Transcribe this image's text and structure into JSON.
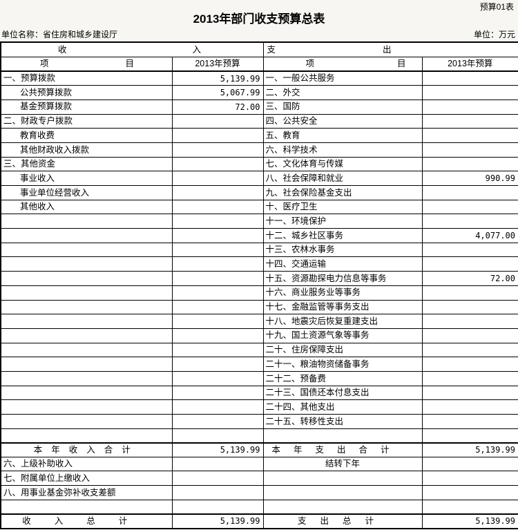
{
  "page": {
    "form_number": "预算01表",
    "title": "2013年部门收支预算总表",
    "unit_name": "单位名称：省住房和城乡建设厅",
    "unit": "单位：万元"
  },
  "table": {
    "headers": {
      "income": [
        "收",
        "入"
      ],
      "expense": [
        "支",
        "出"
      ],
      "item": [
        "项",
        "目"
      ],
      "budget_year": "2013年预算"
    },
    "income_rows": [
      {
        "item": "一、预算拨款",
        "sub": false,
        "value": "5,139.99"
      },
      {
        "item": "公共预算拨款",
        "sub": true,
        "value": "5,067.99"
      },
      {
        "item": "基金预算拨款",
        "sub": true,
        "value": "72.00"
      },
      {
        "item": "二、财政专户拨款",
        "sub": false,
        "value": ""
      },
      {
        "item": "教育收费",
        "sub": true,
        "value": ""
      },
      {
        "item": "其他财政收入拨款",
        "sub": true,
        "value": ""
      },
      {
        "item": "三、其他资金",
        "sub": false,
        "value": ""
      },
      {
        "item": "事业收入",
        "sub": true,
        "value": ""
      },
      {
        "item": "事业单位经营收入",
        "sub": true,
        "value": ""
      },
      {
        "item": "其他收入",
        "sub": true,
        "value": ""
      },
      {
        "item": "",
        "sub": false,
        "value": ""
      },
      {
        "item": "",
        "sub": false,
        "value": ""
      },
      {
        "item": "",
        "sub": false,
        "value": ""
      },
      {
        "item": "",
        "sub": false,
        "value": ""
      },
      {
        "item": "",
        "sub": false,
        "value": ""
      },
      {
        "item": "",
        "sub": false,
        "value": ""
      },
      {
        "item": "",
        "sub": false,
        "value": ""
      },
      {
        "item": "",
        "sub": false,
        "value": ""
      },
      {
        "item": "",
        "sub": false,
        "value": ""
      },
      {
        "item": "",
        "sub": false,
        "value": ""
      },
      {
        "item": "",
        "sub": false,
        "value": ""
      },
      {
        "item": "",
        "sub": false,
        "value": ""
      },
      {
        "item": "",
        "sub": false,
        "value": ""
      },
      {
        "item": "",
        "sub": false,
        "value": ""
      },
      {
        "item": "",
        "sub": false,
        "value": ""
      },
      {
        "item": "",
        "sub": false,
        "value": ""
      }
    ],
    "expense_rows": [
      {
        "item": "一、一般公共服务",
        "value": ""
      },
      {
        "item": "二、外交",
        "value": ""
      },
      {
        "item": "三、国防",
        "value": ""
      },
      {
        "item": "四、公共安全",
        "value": ""
      },
      {
        "item": "五、教育",
        "value": ""
      },
      {
        "item": "六、科学技术",
        "value": ""
      },
      {
        "item": "七、文化体育与传媒",
        "value": ""
      },
      {
        "item": "八、社会保障和就业",
        "value": "990.99"
      },
      {
        "item": "九、社会保险基金支出",
        "value": ""
      },
      {
        "item": "十、医疗卫生",
        "value": ""
      },
      {
        "item": "十一、环境保护",
        "value": ""
      },
      {
        "item": "十二、城乡社区事务",
        "value": "4,077.00"
      },
      {
        "item": "十三、农林水事务",
        "value": ""
      },
      {
        "item": "十四、交通运输",
        "value": ""
      },
      {
        "item": "十五、资源勘探电力信息等事务",
        "value": "72.00"
      },
      {
        "item": "十六、商业服务业等事务",
        "value": ""
      },
      {
        "item": "十七、金融监管等事务支出",
        "value": ""
      },
      {
        "item": "十八、地震灾后恢复重建支出",
        "value": ""
      },
      {
        "item": "十九、国土资源气象等事务",
        "value": ""
      },
      {
        "item": "二十、住房保障支出",
        "value": ""
      },
      {
        "item": "二十一、粮油物资储备事务",
        "value": ""
      },
      {
        "item": "二十二、预备费",
        "value": ""
      },
      {
        "item": "二十三、国债还本付息支出",
        "value": ""
      },
      {
        "item": "二十四、其他支出",
        "value": ""
      },
      {
        "item": "二十五、转移性支出",
        "value": ""
      },
      {
        "item": "",
        "value": ""
      }
    ],
    "subtotal_row": {
      "income_label": "本年收入合计",
      "income_value": "5,139.99",
      "expense_label": "本年支出合计",
      "expense_value": "5,139.99"
    },
    "bottom_rows": [
      {
        "income_item": "六、上级补助收入",
        "income_value": "",
        "expense_item": "结转下年",
        "expense_value": ""
      },
      {
        "income_item": "七、附属单位上缴收入",
        "income_value": "",
        "expense_item": "",
        "expense_value": ""
      },
      {
        "income_item": "八、用事业基金弥补收支差额",
        "income_value": "",
        "expense_item": "",
        "expense_value": ""
      },
      {
        "income_item": "",
        "income_value": "",
        "expense_item": "",
        "expense_value": ""
      }
    ],
    "total_row": {
      "income_label": "收入总计",
      "income_value": "5,139.99",
      "expense_label": "支出总计",
      "expense_value": "5,139.99"
    }
  }
}
